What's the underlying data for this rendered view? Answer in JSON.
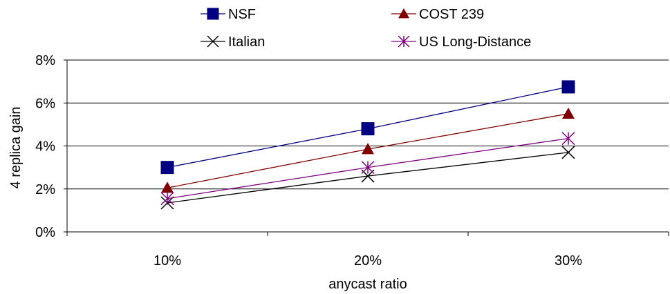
{
  "chart_data": {
    "type": "line",
    "title": "",
    "xlabel": "anycast ratio",
    "ylabel": "4 replica gain",
    "categories": [
      "10%",
      "20%",
      "30%"
    ],
    "ylim": [
      0,
      8
    ],
    "yticks": [
      "0%",
      "2%",
      "4%",
      "6%",
      "8%"
    ],
    "grid": "horizontal",
    "legend_position": "top",
    "series": [
      {
        "name": "NSF",
        "values": [
          3.0,
          4.8,
          6.75
        ],
        "color": "#000080",
        "marker": "square"
      },
      {
        "name": "COST 239",
        "values": [
          2.05,
          3.85,
          5.5
        ],
        "color": "#800000",
        "marker": "triangle"
      },
      {
        "name": "Italian",
        "values": [
          1.35,
          2.6,
          3.7
        ],
        "color": "#000000",
        "marker": "x"
      },
      {
        "name": "US Long-Distance",
        "values": [
          1.55,
          3.0,
          4.35
        ],
        "color": "#800080",
        "marker": "star"
      }
    ]
  }
}
